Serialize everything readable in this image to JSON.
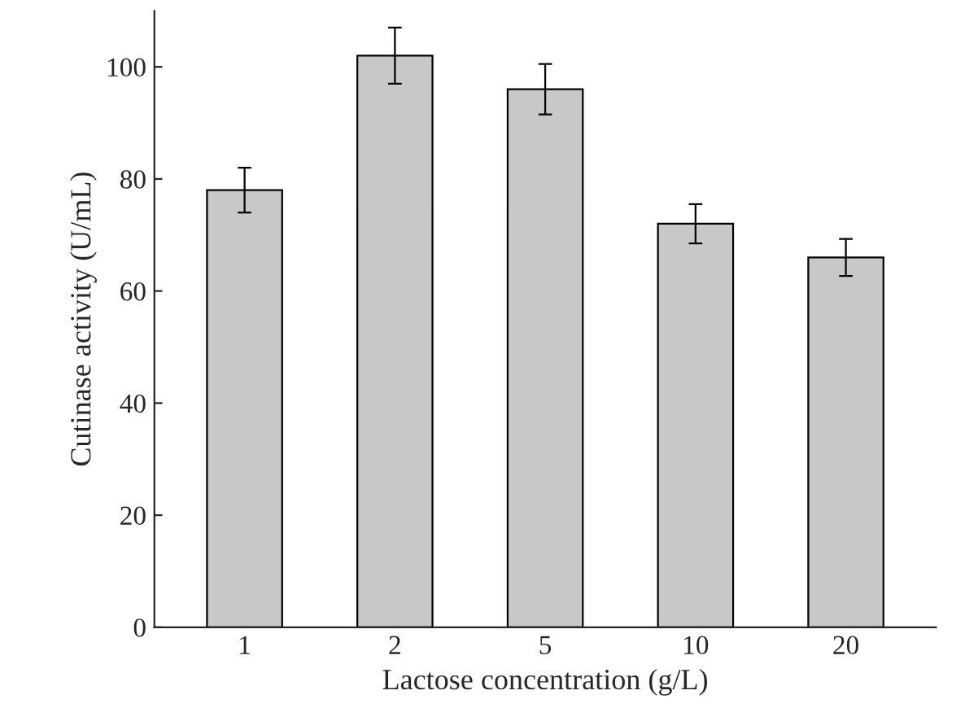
{
  "chart_data": {
    "type": "bar",
    "xlabel": "Lactose concentration (g/L)",
    "ylabel": "Cutinase activity (U/mL)",
    "categories": [
      "1",
      "2",
      "5",
      "10",
      "20"
    ],
    "values": [
      78,
      102,
      96,
      72,
      66
    ],
    "errors": [
      4,
      5,
      4.5,
      3.5,
      3.3
    ],
    "color": "#c8c8c8",
    "ylim": [
      0,
      110
    ],
    "yticks": [
      0,
      20,
      40,
      60,
      80,
      100
    ],
    "grid": false
  }
}
